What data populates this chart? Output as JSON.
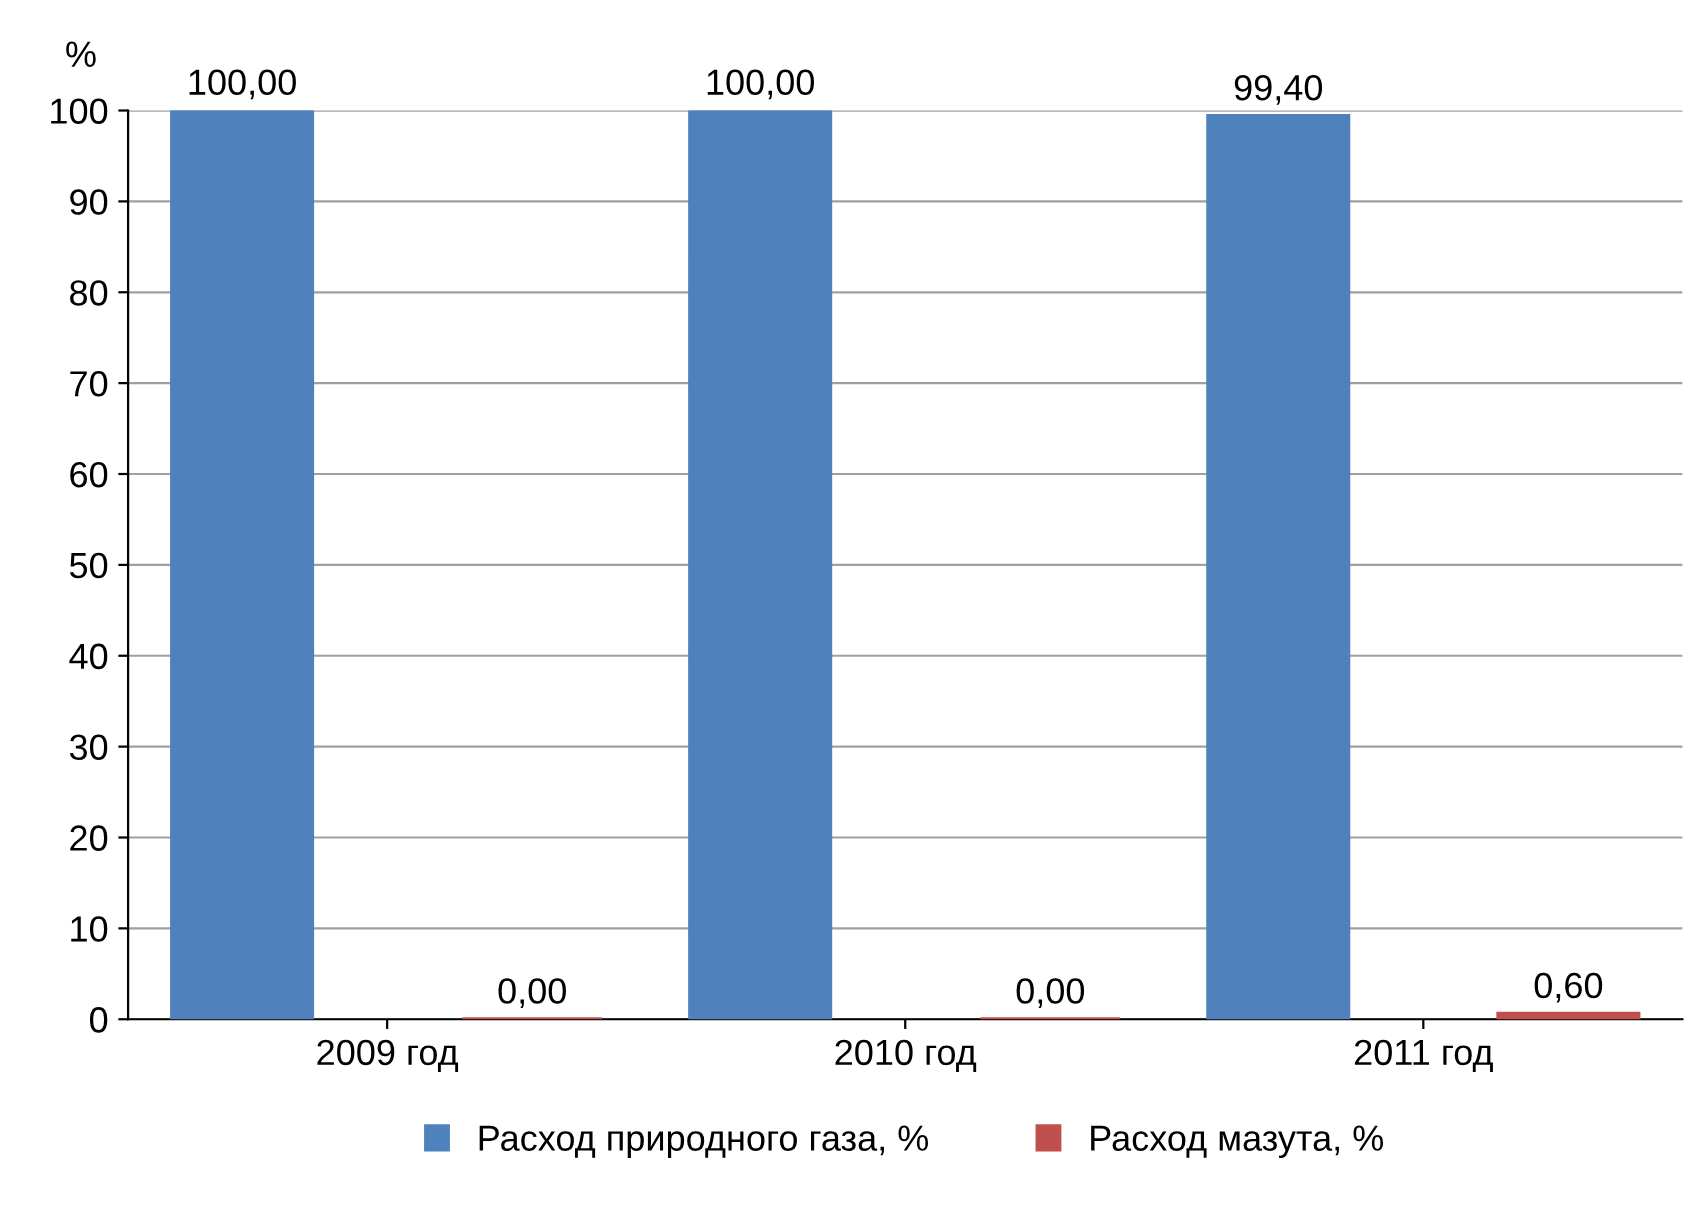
{
  "chart_data": {
    "type": "bar",
    "ylabel": "%",
    "categories": [
      "2009 год",
      "2010 год",
      "2011 год"
    ],
    "series": [
      {
        "name": "Расход природного газа, %",
        "color": "#4f81bd",
        "values": [
          100.0,
          100.0,
          99.4
        ],
        "value_labels": [
          "100,00",
          "100,00",
          "99,40"
        ]
      },
      {
        "name": "Расход мазута, %",
        "color": "#c0504d",
        "values": [
          0.0,
          0.0,
          0.6
        ],
        "value_labels": [
          "0,00",
          "0,00",
          "0,60"
        ]
      }
    ],
    "ylim": [
      0,
      100
    ],
    "yticks": [
      0,
      10,
      20,
      30,
      40,
      50,
      60,
      70,
      80,
      90,
      100
    ],
    "grid": "y",
    "legend": "bottom"
  }
}
